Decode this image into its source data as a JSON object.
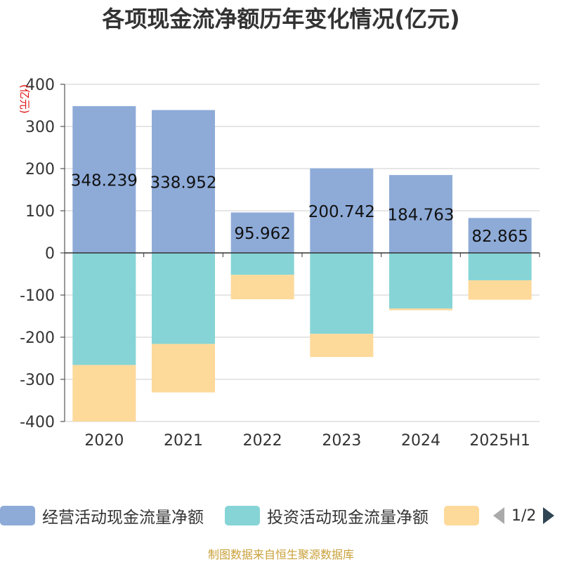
{
  "title": "各项现金流净额历年变化情况(亿元)",
  "footer": "制图数据来自恒生聚源数据库",
  "legend_page": "1/2",
  "chart_data": {
    "type": "bar",
    "stacked": true,
    "categories": [
      "2020",
      "2021",
      "2022",
      "2023",
      "2024",
      "2025H1"
    ],
    "unit_label": "(亿元)",
    "ylim": [
      -400,
      400
    ],
    "yticks": [
      400,
      300,
      200,
      100,
      0,
      -100,
      -200,
      -300,
      -400
    ],
    "grid": true,
    "legend_position": "bottom",
    "series": [
      {
        "name": "经营活动现金流量净额",
        "color": "#8eabd8",
        "values": [
          348.239,
          338.952,
          95.962,
          200.742,
          184.763,
          82.865
        ],
        "labels": [
          "348.239",
          "338.952",
          "95.962",
          "200.742",
          "184.763",
          "82.865"
        ]
      },
      {
        "name": "投资活动现金流量净额",
        "color": "#86d4d6",
        "values": [
          -266,
          -216,
          -52,
          -192,
          -132,
          -65
        ]
      },
      {
        "name": "",
        "color": "#fdd99a",
        "values": [
          -134,
          -115,
          -58,
          -55,
          -4,
          -46
        ]
      }
    ]
  }
}
